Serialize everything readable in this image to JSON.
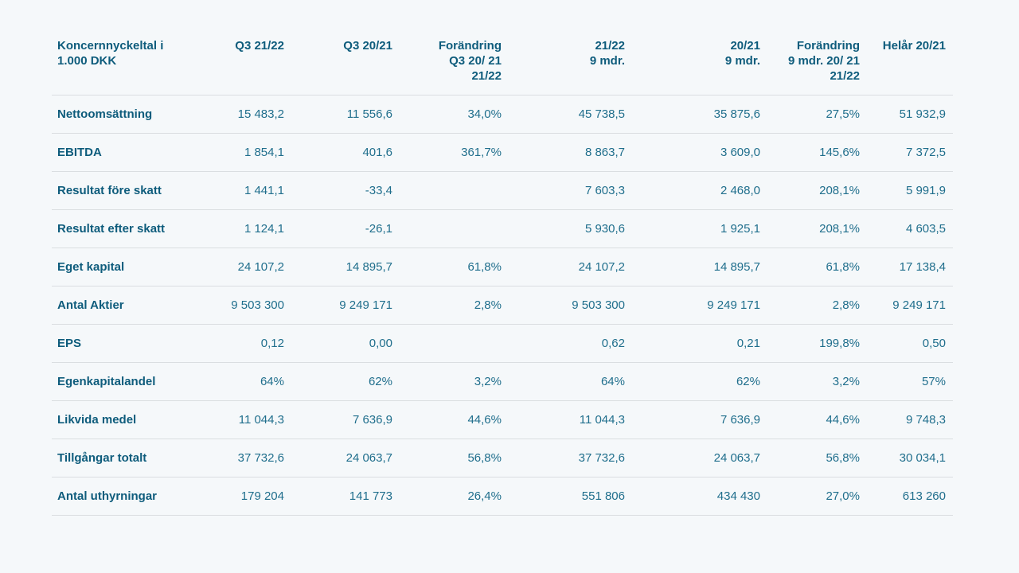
{
  "table": {
    "unit_header": "Koncernnyckeltal i\n1.000 DKK",
    "columns": [
      "Q3 21/22",
      "Q3 20/21",
      "Forändring\nQ3 20/ 21\n21/22",
      "21/22\n9 mdr.",
      "20/21\n9 mdr.",
      "Forändring\n9 mdr. 20/ 21\n21/22",
      "Helår 20/21"
    ],
    "rows": [
      {
        "label": "Nettoomsättning",
        "values": [
          "15 483,2",
          "11 556,6",
          "34,0%",
          "45 738,5",
          "35 875,6",
          "27,5%",
          "51 932,9"
        ]
      },
      {
        "label": "EBITDA",
        "values": [
          "1 854,1",
          "401,6",
          "361,7%",
          "8 863,7",
          "3 609,0",
          "145,6%",
          "7 372,5"
        ]
      },
      {
        "label": "Resultat före skatt",
        "values": [
          "1 441,1",
          "-33,4",
          "",
          "7 603,3",
          "2 468,0",
          "208,1%",
          "5 991,9"
        ]
      },
      {
        "label": "Resultat efter skatt",
        "values": [
          "1 124,1",
          "-26,1",
          "",
          "5 930,6",
          "1 925,1",
          "208,1%",
          "4 603,5"
        ]
      },
      {
        "label": "Eget kapital",
        "values": [
          "24 107,2",
          "14 895,7",
          "61,8%",
          "24 107,2",
          "14 895,7",
          "61,8%",
          "17 138,4"
        ]
      },
      {
        "label": "Antal Aktier",
        "values": [
          "9 503 300",
          "9 249 171",
          "2,8%",
          "9 503 300",
          "9 249 171",
          "2,8%",
          "9 249 171"
        ]
      },
      {
        "label": "EPS",
        "values": [
          "0,12",
          "0,00",
          "",
          "0,62",
          "0,21",
          "199,8%",
          "0,50"
        ]
      },
      {
        "label": "Egenkapitalandel",
        "values": [
          "64%",
          "62%",
          "3,2%",
          "64%",
          "62%",
          "3,2%",
          "57%"
        ]
      },
      {
        "label": "Likvida medel",
        "values": [
          "11 044,3",
          "7 636,9",
          "44,6%",
          "11 044,3",
          "7 636,9",
          "44,6%",
          "9 748,3"
        ]
      },
      {
        "label": "Tillgångar totalt",
        "values": [
          "37 732,6",
          "24 063,7",
          "56,8%",
          "37 732,6",
          "24 063,7",
          "56,8%",
          "30 034,1"
        ]
      },
      {
        "label": "Antal uthyrningar",
        "values": [
          "179 204",
          "141 773",
          "26,4%",
          "551 806",
          "434 430",
          "27,0%",
          "613 260"
        ]
      }
    ],
    "colors": {
      "background": "#f5f8fa",
      "label_text": "#0e5c7c",
      "number_text": "#1f6e8c",
      "divider": "#dadee1"
    }
  }
}
